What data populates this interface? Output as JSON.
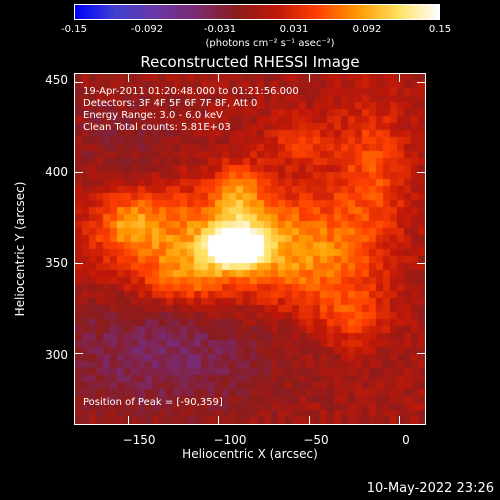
{
  "colorbar": {
    "ticks": [
      "-0.15",
      "-0.092",
      "-0.031",
      "0.031",
      "0.092",
      "0.15"
    ],
    "unit": "(photons cm⁻² s⁻¹ asec⁻²)",
    "colors": [
      "#0000ff",
      "#4040d0",
      "#6a36a8",
      "#7a2a6e",
      "#8a1c1c",
      "#c01808",
      "#ff4000",
      "#ff9a00",
      "#ffe060",
      "#ffffff"
    ]
  },
  "title": "Reconstructed RHESSI Image",
  "annotations": [
    "19-Apr-2011 01:20:48.000 to 01:21:56.000",
    "Detectors: 3F 4F 5F 6F 7F 8F, Att 0",
    "Energy Range: 3.0 - 6.0 keV",
    "Clean    Total counts: 5.81E+03"
  ],
  "peak_label": "Position of Peak = [-90,359]",
  "timestamp": "10-May-2022 23:26",
  "chart_data": {
    "type": "heatmap",
    "title": "Reconstructed RHESSI Image",
    "xlabel": "Heliocentric X (arcsec)",
    "ylabel": "Heliocentric Y (arcsec)",
    "xlim": [
      -180,
      15
    ],
    "ylim": [
      260,
      455
    ],
    "x_ticks": [
      -150,
      -100,
      -50,
      0
    ],
    "y_ticks": [
      300,
      350,
      400,
      450
    ],
    "x_tick_labels": [
      "−150",
      "−100",
      "−50",
      "0"
    ],
    "y_tick_labels": [
      "300",
      "350",
      "400",
      "450"
    ],
    "colorbar_range": [
      -0.15,
      0.15
    ],
    "peak": {
      "x": -90,
      "y": 359
    },
    "components": [
      {
        "x": -90,
        "y": 359,
        "sx": 11,
        "sy": 8,
        "amp": 0.16
      },
      {
        "x": -105,
        "y": 362,
        "sx": 40,
        "sy": 22,
        "amp": 0.08
      },
      {
        "x": -88,
        "y": 390,
        "sx": 10,
        "sy": 12,
        "amp": 0.055
      },
      {
        "x": -150,
        "y": 372,
        "sx": 13,
        "sy": 12,
        "amp": 0.055
      },
      {
        "x": -45,
        "y": 352,
        "sx": 24,
        "sy": 22,
        "amp": 0.055
      },
      {
        "x": -15,
        "y": 402,
        "sx": 15,
        "sy": 28,
        "amp": 0.05
      },
      {
        "x": -55,
        "y": 418,
        "sx": 12,
        "sy": 10,
        "amp": 0.04
      },
      {
        "x": -120,
        "y": 340,
        "sx": 16,
        "sy": 10,
        "amp": 0.04
      },
      {
        "x": -25,
        "y": 320,
        "sx": 14,
        "sy": 12,
        "amp": 0.04
      },
      {
        "x": -130,
        "y": 300,
        "sx": 45,
        "sy": 25,
        "amp": -0.045
      },
      {
        "x": -150,
        "y": 418,
        "sx": 28,
        "sy": 22,
        "amp": -0.02
      }
    ]
  }
}
